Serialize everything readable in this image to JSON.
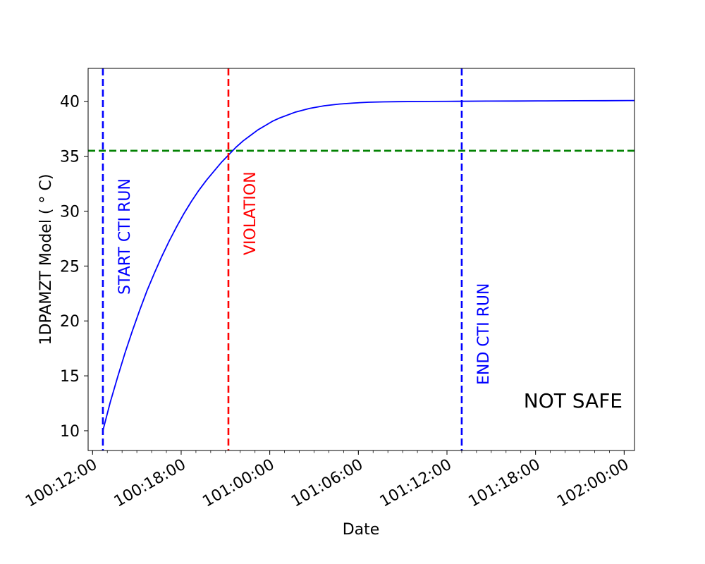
{
  "chart_data": {
    "type": "line",
    "xlabel": "Date",
    "ylabel": "1DPAMZT Model ($^\\circ$C)",
    "ylabel_display": "1DPAMZT Model ( ° C)",
    "x_unit": "hours",
    "xlim": [
      "100:11:42",
      "102:00:42"
    ],
    "ylim": [
      8.2,
      43.0
    ],
    "x_ticks": [
      "100:12:00",
      "100:18:00",
      "101:00:00",
      "101:06:00",
      "101:12:00",
      "101:18:00",
      "102:00:00"
    ],
    "x_minor_tick_step_hours": 1,
    "y_ticks": [
      10,
      15,
      20,
      25,
      30,
      35,
      40
    ],
    "grid": false,
    "series": [
      {
        "color": "#0000ff",
        "style": "solid",
        "x": [
          "100:12:42",
          "100:13:12",
          "100:13:42",
          "100:14:12",
          "100:14:42",
          "100:15:12",
          "100:15:42",
          "100:16:12",
          "100:16:42",
          "100:17:12",
          "100:17:42",
          "100:18:12",
          "100:18:42",
          "100:19:12",
          "100:19:42",
          "100:20:12",
          "100:20:42",
          "100:21:12",
          "100:21:42",
          "100:22:12",
          "100:22:42",
          "100:23:12",
          "100:23:42",
          "101:00:12",
          "101:00:42",
          "101:01:42",
          "101:02:42",
          "101:03:42",
          "101:04:42",
          "101:05:42",
          "101:06:42",
          "101:07:42",
          "101:08:42",
          "101:10:42",
          "101:12:42",
          "101:14:42",
          "101:16:42",
          "101:18:42",
          "101:20:42",
          "101:22:42",
          "102:00:42"
        ],
        "y": [
          10.0,
          12.6,
          14.9,
          17.1,
          19.1,
          21.0,
          22.8,
          24.4,
          25.9,
          27.3,
          28.6,
          29.8,
          30.9,
          31.9,
          32.8,
          33.6,
          34.4,
          35.1,
          35.8,
          36.4,
          36.9,
          37.4,
          37.8,
          38.2,
          38.5,
          39.0,
          39.35,
          39.6,
          39.75,
          39.85,
          39.92,
          39.95,
          39.97,
          39.99,
          40.0,
          40.02,
          40.03,
          40.04,
          40.05,
          40.06,
          40.07
        ]
      }
    ],
    "vlines": [
      {
        "x": "100:12:42",
        "color": "#0000ff",
        "style": "dashed",
        "label": "START CTI RUN"
      },
      {
        "x": "100:21:12",
        "color": "#ff0000",
        "style": "dashed",
        "label": "VIOLATION"
      },
      {
        "x": "101:13:00",
        "color": "#0000ff",
        "style": "dashed",
        "label": "END CTI RUN"
      }
    ],
    "hlines": [
      {
        "y": 35.5,
        "color": "#008000",
        "style": "dashed"
      }
    ],
    "annotation": "NOT SAFE"
  }
}
